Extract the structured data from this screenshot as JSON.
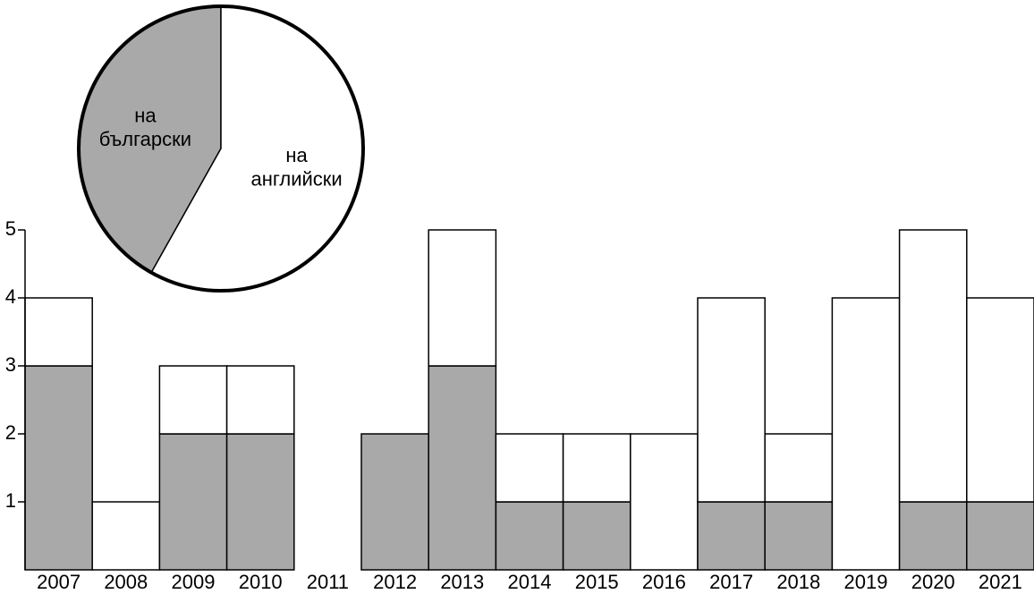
{
  "chart_data": [
    {
      "type": "stacked-bar",
      "categories": [
        "2007",
        "2008",
        "2009",
        "2010",
        "2011",
        "2012",
        "2013",
        "2014",
        "2015",
        "2016",
        "2017",
        "2018",
        "2019",
        "2020",
        "2021"
      ],
      "series": [
        {
          "name": "на български",
          "color": "#a9a9a9",
          "values": [
            3,
            0,
            2,
            2,
            0,
            2,
            3,
            1,
            1,
            0,
            1,
            1,
            0,
            1,
            1
          ]
        },
        {
          "name": "на английски",
          "color": "#ffffff",
          "values": [
            1,
            1,
            1,
            1,
            0,
            0,
            2,
            1,
            1,
            2,
            3,
            1,
            4,
            4,
            3
          ]
        }
      ],
      "ylim": [
        0,
        5
      ],
      "yticks": [
        1,
        2,
        3,
        4,
        5
      ]
    },
    {
      "type": "pie",
      "categories": [
        "на български",
        "на английски"
      ],
      "values": [
        18,
        25
      ],
      "colors": [
        "#a9a9a9",
        "#ffffff"
      ]
    }
  ]
}
